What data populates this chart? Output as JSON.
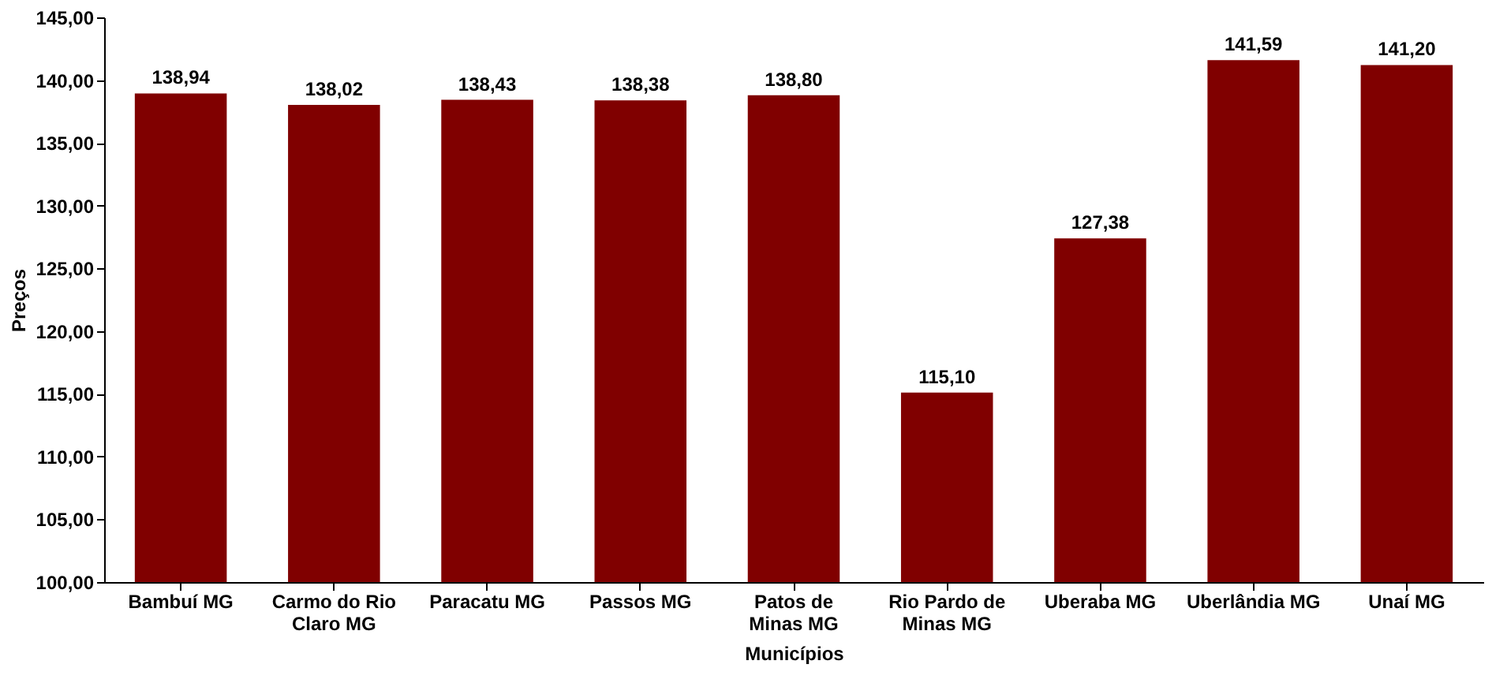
{
  "chart_data": {
    "type": "bar",
    "xlabel": "Municípios",
    "ylabel": "Preços",
    "categories": [
      "Bambuí MG",
      "Carmo do Rio Claro MG",
      "Paracatu MG",
      "Passos MG",
      "Patos de Minas MG",
      "Rio Pardo de Minas MG",
      "Uberaba MG",
      "Uberlândia MG",
      "Unaí MG"
    ],
    "values": [
      138.94,
      138.02,
      138.43,
      138.38,
      138.8,
      115.1,
      127.38,
      141.59,
      141.2
    ],
    "value_labels": [
      "138,94",
      "138,02",
      "138,43",
      "138,38",
      "138,80",
      "115,10",
      "127,38",
      "141,59",
      "141,20"
    ],
    "color": "#800000",
    "ylim": [
      100,
      145
    ],
    "yticks": [
      {
        "value": 100,
        "label": "100,00"
      },
      {
        "value": 105,
        "label": "105,00"
      },
      {
        "value": 110,
        "label": "110,00"
      },
      {
        "value": 115,
        "label": "115,00"
      },
      {
        "value": 120,
        "label": "120,00"
      },
      {
        "value": 125,
        "label": "125,00"
      },
      {
        "value": 130,
        "label": "130,00"
      },
      {
        "value": 135,
        "label": "135,00"
      },
      {
        "value": 140,
        "label": "140,00"
      },
      {
        "value": 145,
        "label": "145,00"
      }
    ],
    "grid": false
  }
}
